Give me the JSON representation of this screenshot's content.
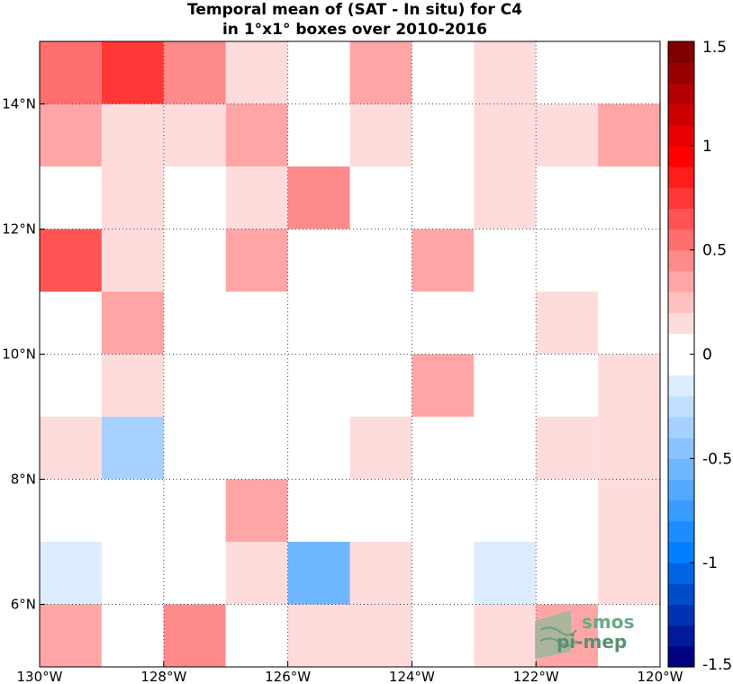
{
  "chart_data": {
    "type": "heatmap",
    "title": [
      "Temporal mean of (SAT - In situ) for C4",
      "in 1°x1° boxes over 2010-2016"
    ],
    "x_range": [
      -130,
      -120
    ],
    "y_range": [
      5,
      15
    ],
    "x_ticks": [
      -130,
      -128,
      -126,
      -124,
      -122,
      -120
    ],
    "x_tick_labels": [
      "130°W",
      "128°W",
      "126°W",
      "124°W",
      "122°W",
      "120°W"
    ],
    "y_ticks": [
      6,
      8,
      10,
      12,
      14
    ],
    "y_tick_labels": [
      "6°N",
      "8°N",
      "10°N",
      "12°N",
      "14°N"
    ],
    "grid": true,
    "colorbar": {
      "range": [
        -1.5,
        1.5
      ],
      "ticks": [
        1.5,
        1,
        0.5,
        0,
        -0.5,
        -1,
        -1.5
      ],
      "tick_labels": [
        "1.5",
        "1",
        "0.5",
        "0",
        "-0.5",
        "-1",
        "-1.5"
      ],
      "placement": "right"
    },
    "row_lat_top": [
      15,
      14,
      13,
      12,
      11,
      10,
      9,
      8,
      7,
      6
    ],
    "col_lon_left": [
      -130,
      -129,
      -128,
      -127,
      -126,
      -125,
      -124,
      -123,
      -122,
      -121
    ],
    "values": [
      [
        0.5,
        0.7,
        0.4,
        0.1,
        0.0,
        0.3,
        0.0,
        0.1,
        0.0,
        0.0
      ],
      [
        0.3,
        0.1,
        0.1,
        0.3,
        0.0,
        0.1,
        0.0,
        0.1,
        0.1,
        0.3
      ],
      [
        0.0,
        0.1,
        0.0,
        0.1,
        0.4,
        0.0,
        0.0,
        0.1,
        0.0,
        0.0
      ],
      [
        0.6,
        0.1,
        0.0,
        0.3,
        0.0,
        0.0,
        0.3,
        0.0,
        0.0,
        0.0
      ],
      [
        0.0,
        0.3,
        0.0,
        0.0,
        0.0,
        0.0,
        0.0,
        0.0,
        0.1,
        0.0
      ],
      [
        0.0,
        0.1,
        0.0,
        0.0,
        0.0,
        0.0,
        0.3,
        -0.1,
        0.0,
        0.1
      ],
      [
        0.1,
        -0.4,
        0.0,
        -0.1,
        -0.1,
        0.1,
        0.0,
        -0.1,
        0.1,
        0.1
      ],
      [
        0.0,
        0.0,
        0.0,
        0.3,
        0.0,
        0.0,
        0.0,
        0.0,
        0.0,
        0.1
      ],
      [
        -0.2,
        0.0,
        0.0,
        0.1,
        -0.6,
        0.1,
        0.0,
        -0.2,
        0.0,
        0.1
      ],
      [
        0.3,
        0.0,
        0.4,
        0.0,
        0.1,
        0.1,
        0.0,
        0.1,
        0.3,
        0.0
      ]
    ]
  },
  "logo": {
    "line1": "smos",
    "line2": "pi-mep"
  }
}
